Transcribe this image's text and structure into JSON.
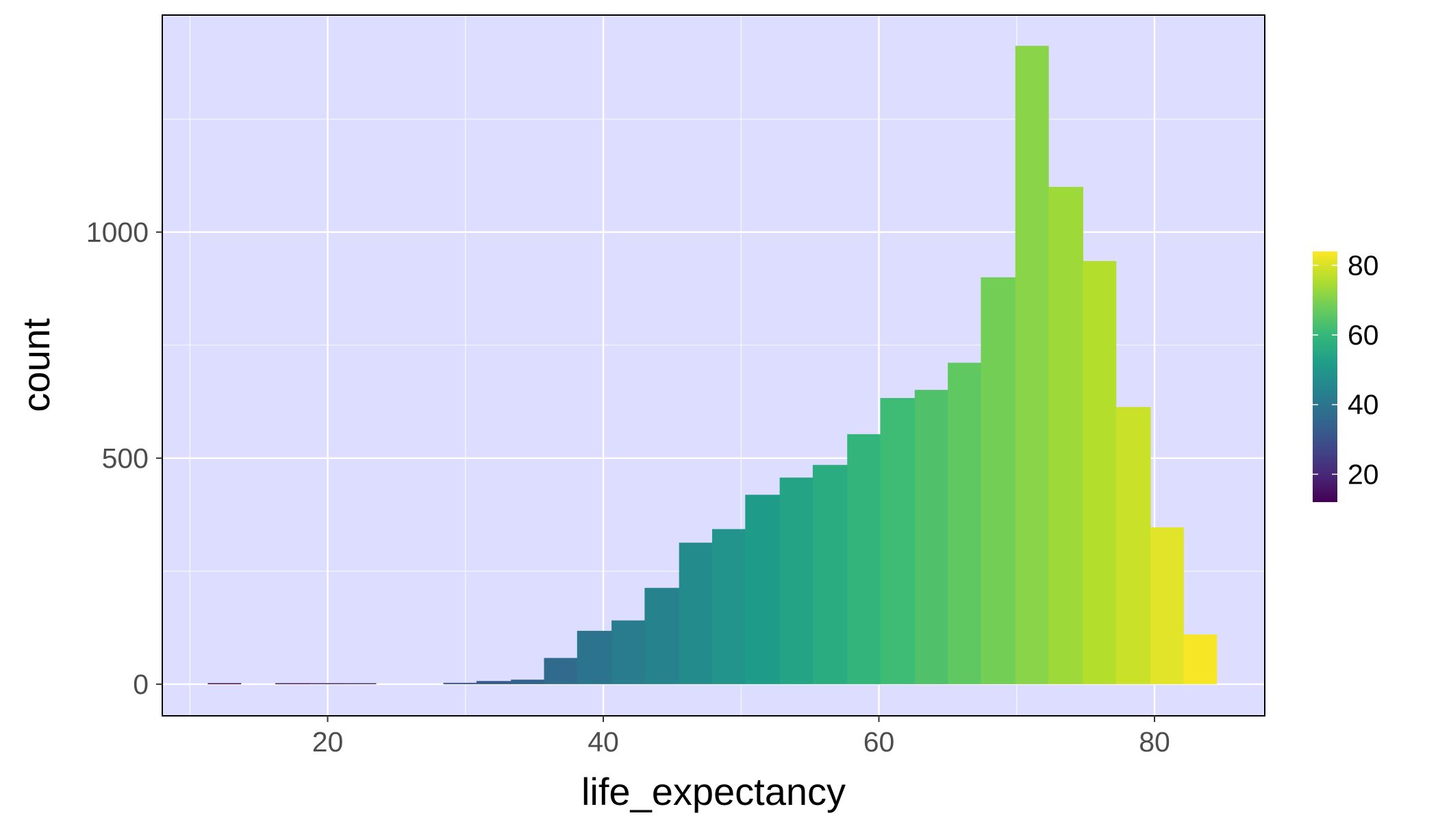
{
  "chart_data": {
    "type": "bar",
    "subtype": "histogram",
    "title": "",
    "xlabel": "life_expectancy",
    "ylabel": "count",
    "xlim": [
      8,
      88
    ],
    "ylim": [
      -70,
      1480
    ],
    "x_ticks": [
      20,
      40,
      60,
      80
    ],
    "y_ticks": [
      0,
      500,
      1000
    ],
    "x_minor_gridlines": [
      10,
      30,
      50,
      70
    ],
    "y_minor_gridlines": [
      250,
      750,
      1250
    ],
    "grid": true,
    "panel_background": "#DDDDFF",
    "grid_color": "#FFFFFF",
    "panel_border_color": "#000000",
    "bin_width": 2.44,
    "bins": [
      {
        "x_start": 11.3,
        "x_end": 13.7,
        "count": 1
      },
      {
        "x_start": 16.2,
        "x_end": 18.6,
        "count": 1
      },
      {
        "x_start": 18.6,
        "x_end": 21.1,
        "count": 1
      },
      {
        "x_start": 21.1,
        "x_end": 23.5,
        "count": 1
      },
      {
        "x_start": 28.4,
        "x_end": 30.8,
        "count": 3
      },
      {
        "x_start": 30.8,
        "x_end": 33.3,
        "count": 7
      },
      {
        "x_start": 33.3,
        "x_end": 35.7,
        "count": 10
      },
      {
        "x_start": 35.7,
        "x_end": 38.1,
        "count": 58
      },
      {
        "x_start": 38.1,
        "x_end": 40.6,
        "count": 118
      },
      {
        "x_start": 40.6,
        "x_end": 43.0,
        "count": 141
      },
      {
        "x_start": 43.0,
        "x_end": 45.5,
        "count": 213
      },
      {
        "x_start": 45.5,
        "x_end": 47.9,
        "count": 313
      },
      {
        "x_start": 47.9,
        "x_end": 50.3,
        "count": 343
      },
      {
        "x_start": 50.3,
        "x_end": 52.8,
        "count": 419
      },
      {
        "x_start": 52.8,
        "x_end": 55.2,
        "count": 457
      },
      {
        "x_start": 55.2,
        "x_end": 57.7,
        "count": 485
      },
      {
        "x_start": 57.7,
        "x_end": 60.1,
        "count": 553
      },
      {
        "x_start": 60.1,
        "x_end": 62.6,
        "count": 633
      },
      {
        "x_start": 62.6,
        "x_end": 65.0,
        "count": 651
      },
      {
        "x_start": 65.0,
        "x_end": 67.4,
        "count": 711
      },
      {
        "x_start": 67.4,
        "x_end": 69.9,
        "count": 900
      },
      {
        "x_start": 69.9,
        "x_end": 72.3,
        "count": 1412
      },
      {
        "x_start": 72.3,
        "x_end": 74.8,
        "count": 1100
      },
      {
        "x_start": 74.8,
        "x_end": 77.2,
        "count": 936
      },
      {
        "x_start": 77.2,
        "x_end": 79.7,
        "count": 613
      },
      {
        "x_start": 79.7,
        "x_end": 82.1,
        "count": 347
      },
      {
        "x_start": 82.1,
        "x_end": 84.5,
        "count": 110
      }
    ],
    "fill_mapping": "bin center (life_expectancy)",
    "colorbar": {
      "title": "",
      "placement": "right",
      "range": [
        12,
        84
      ],
      "ticks": [
        20,
        40,
        60,
        80
      ],
      "palette": "viridis",
      "colors": [
        "#440154",
        "#482878",
        "#3E4A89",
        "#31688E",
        "#26828E",
        "#1F9E89",
        "#35B779",
        "#6DCD59",
        "#B4DE2C",
        "#FDE725"
      ]
    }
  }
}
